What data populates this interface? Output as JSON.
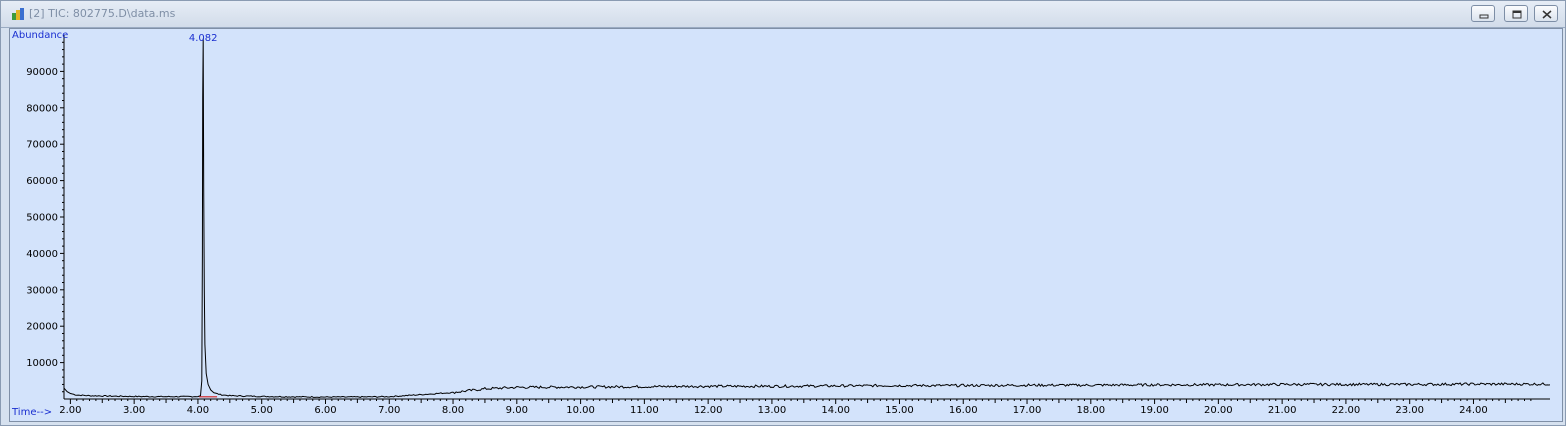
{
  "window": {
    "title": "[2] TIC: 802775.D\\data.ms",
    "icon": "app-icon",
    "buttons": [
      "minimize-icon",
      "restore-icon",
      "close-icon"
    ]
  },
  "colors": {
    "plot_background": "#d3e3fb",
    "trace": "#000000",
    "label_blue": "#1a2fd0",
    "baseline_marker": "#d21f1f"
  },
  "chart_data": {
    "type": "line",
    "title": "",
    "ylabel": "Abundance",
    "xlabel": "Time-->",
    "xlim": [
      1.9,
      25.2
    ],
    "ylim": [
      0,
      100000
    ],
    "x_ticks": [
      "2.00",
      "3.00",
      "4.00",
      "5.00",
      "6.00",
      "7.00",
      "8.00",
      "9.00",
      "10.00",
      "11.00",
      "12.00",
      "13.00",
      "14.00",
      "15.00",
      "16.00",
      "17.00",
      "18.00",
      "19.00",
      "20.00",
      "21.00",
      "22.00",
      "23.00",
      "24.00"
    ],
    "y_ticks": [
      "10000",
      "20000",
      "30000",
      "40000",
      "50000",
      "60000",
      "70000",
      "80000",
      "90000"
    ],
    "grid": false,
    "annotations": [
      {
        "x": 4.082,
        "text": "4.082"
      }
    ],
    "series": [
      {
        "x": [
          1.9,
          1.95,
          2.0,
          2.1,
          2.3,
          2.6,
          3.0,
          3.4,
          3.8,
          4.0,
          4.04,
          4.06,
          4.07,
          4.075,
          4.082,
          4.09,
          4.1,
          4.11,
          4.13,
          4.16,
          4.2,
          4.25,
          4.35,
          4.5,
          5.0,
          5.5,
          6.0,
          6.5,
          7.0,
          7.5,
          8.0,
          8.5,
          9.0,
          10.0,
          11.0,
          12.0,
          13.0,
          14.0,
          15.0,
          16.0,
          17.0,
          18.0,
          19.0,
          20.0,
          21.0,
          22.0,
          23.0,
          24.0,
          25.0,
          25.2
        ],
        "values": [
          3000,
          2000,
          1500,
          1100,
          900,
          800,
          700,
          650,
          650,
          700,
          900,
          5000,
          40000,
          83000,
          99000,
          58000,
          30000,
          15000,
          7000,
          4000,
          2500,
          1700,
          1200,
          900,
          700,
          600,
          550,
          550,
          650,
          1200,
          1800,
          2800,
          3200,
          3300,
          3400,
          3500,
          3500,
          3600,
          3700,
          3700,
          3800,
          3800,
          3900,
          3900,
          4000,
          4000,
          4000,
          4100,
          4100,
          4100
        ]
      }
    ]
  }
}
